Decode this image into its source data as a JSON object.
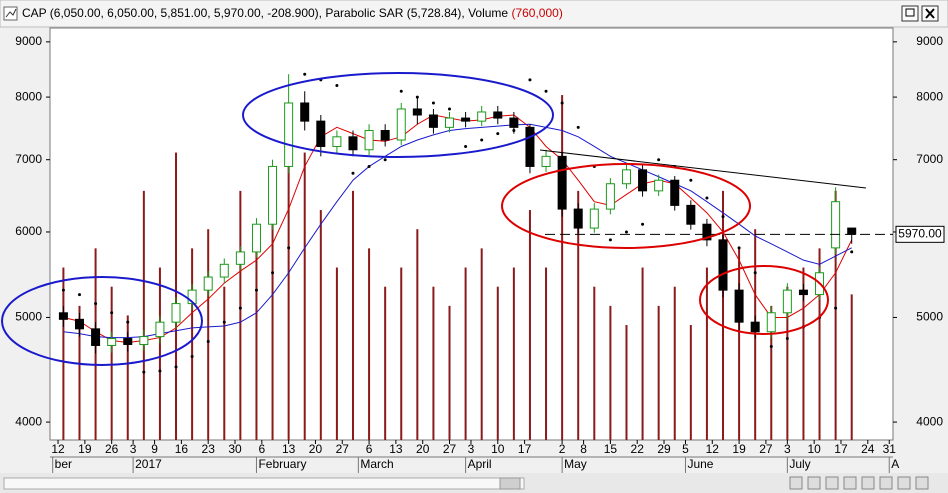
{
  "chart_data": {
    "type": "candlestick",
    "title": "CAP (6,050.00, 6,050.00, 5,851.00, 5,970.00, -208.900), Parabolic SAR (5,728.84), Volume ",
    "title_volume": "(760,000)",
    "log_scale": true,
    "ylim": [
      3850,
      9270
    ],
    "yticks": [
      4000,
      5000,
      6000,
      7000,
      8000,
      9000
    ],
    "xlim": [
      -1.5,
      155.7
    ],
    "xticks": [
      {
        "value": 0,
        "label": "12"
      },
      {
        "value": 5,
        "label": "19"
      },
      {
        "value": 10,
        "label": "26"
      },
      {
        "value": 14,
        "label": "3"
      },
      {
        "value": 18,
        "label": "9"
      },
      {
        "value": 23,
        "label": "16"
      },
      {
        "value": 28,
        "label": "23"
      },
      {
        "value": 33,
        "label": "30"
      },
      {
        "value": 38,
        "label": "6"
      },
      {
        "value": 43,
        "label": "13"
      },
      {
        "value": 48,
        "label": "20"
      },
      {
        "value": 53,
        "label": "27"
      },
      {
        "value": 58,
        "label": "6"
      },
      {
        "value": 63,
        "label": "13"
      },
      {
        "value": 68,
        "label": "20"
      },
      {
        "value": 73,
        "label": "27"
      },
      {
        "value": 77,
        "label": "3"
      },
      {
        "value": 82,
        "label": "10"
      },
      {
        "value": 87,
        "label": "17"
      },
      {
        "value": 94,
        "label": "2"
      },
      {
        "value": 98,
        "label": "8"
      },
      {
        "value": 103,
        "label": "15"
      },
      {
        "value": 108,
        "label": "22"
      },
      {
        "value": 113,
        "label": "29"
      },
      {
        "value": 117,
        "label": "5"
      },
      {
        "value": 122,
        "label": "12"
      },
      {
        "value": 127,
        "label": "19"
      },
      {
        "value": 132,
        "label": "27"
      },
      {
        "value": 136,
        "label": "3"
      },
      {
        "value": 141,
        "label": "10"
      },
      {
        "value": 146,
        "label": "17"
      },
      {
        "value": 151,
        "label": "24"
      },
      {
        "value": 155,
        "label": "31"
      }
    ],
    "month_ticks": [
      {
        "value": -1,
        "label": "ber"
      },
      {
        "value": 14,
        "label": "2017"
      },
      {
        "value": 37,
        "label": "February"
      },
      {
        "value": 56,
        "label": "March"
      },
      {
        "value": 76,
        "label": "April"
      },
      {
        "value": 94,
        "label": "May"
      },
      {
        "value": 117,
        "label": "June"
      },
      {
        "value": 136,
        "label": "July"
      },
      {
        "value": 155,
        "label": "A"
      }
    ],
    "x": [
      1,
      4,
      7,
      10,
      13,
      16,
      19,
      22,
      25,
      28,
      31,
      34,
      37,
      40,
      43,
      46,
      49,
      52,
      55,
      58,
      61,
      64,
      67,
      70,
      73,
      76,
      79,
      82,
      85,
      88,
      91,
      94,
      97,
      100,
      103,
      106,
      109,
      112,
      115,
      118,
      121,
      124,
      127,
      130,
      133,
      136,
      139,
      142,
      145,
      148
    ],
    "open": [
      5050,
      4980,
      4880,
      4710,
      4780,
      4720,
      4800,
      4950,
      5150,
      5300,
      5450,
      5600,
      5750,
      6100,
      6900,
      7900,
      7600,
      7200,
      7350,
      7150,
      7450,
      7300,
      7800,
      7700,
      7500,
      7650,
      7600,
      7750,
      7650,
      7500,
      6900,
      7050,
      6300,
      6050,
      6300,
      6650,
      6850,
      6550,
      6700,
      6350,
      6100,
      5900,
      5300,
      4950,
      4850,
      5050,
      5300,
      5250,
      5800,
      6050
    ],
    "high": [
      5120,
      5050,
      4950,
      4850,
      4850,
      4870,
      5020,
      5220,
      5370,
      5520,
      5670,
      5820,
      6180,
      7000,
      8400,
      8100,
      7700,
      7450,
      7450,
      7550,
      7550,
      7900,
      8000,
      7800,
      7750,
      7750,
      7850,
      7850,
      7750,
      7550,
      7150,
      7100,
      6380,
      6380,
      6730,
      6950,
      6920,
      6780,
      6760,
      6420,
      6170,
      5960,
      5380,
      5020,
      5120,
      5380,
      5370,
      5570,
      6600,
      6050
    ],
    "low": [
      4900,
      4800,
      4630,
      4640,
      4650,
      4660,
      4730,
      4880,
      5080,
      5230,
      5380,
      5530,
      5680,
      6030,
      6800,
      7450,
      7050,
      7100,
      7050,
      7070,
      7200,
      7220,
      7550,
      7400,
      7420,
      7500,
      7520,
      7550,
      7400,
      6800,
      6820,
      6200,
      5980,
      5990,
      6230,
      6580,
      6470,
      6480,
      6280,
      6030,
      5820,
      5220,
      4870,
      4780,
      4790,
      4990,
      5180,
      5190,
      5720,
      5851
    ],
    "close": [
      4980,
      4880,
      4710,
      4780,
      4720,
      4800,
      4950,
      5150,
      5300,
      5450,
      5600,
      5750,
      6100,
      6900,
      7900,
      7600,
      7200,
      7350,
      7150,
      7450,
      7300,
      7800,
      7700,
      7500,
      7650,
      7600,
      7750,
      7650,
      7500,
      6900,
      7050,
      6300,
      6050,
      6300,
      6650,
      6850,
      6550,
      6700,
      6350,
      6100,
      5900,
      5300,
      4950,
      4850,
      5050,
      5300,
      5250,
      5500,
      6400,
      5970
    ],
    "volume": [
      900000,
      700000,
      1000000,
      800000,
      650000,
      1300000,
      900000,
      1500000,
      1000000,
      1100000,
      800000,
      1300000,
      1100000,
      1200000,
      1700000,
      1500000,
      1200000,
      900000,
      1300000,
      1000000,
      800000,
      900000,
      1100000,
      800000,
      700000,
      900000,
      1000000,
      800000,
      900000,
      1200000,
      900000,
      1800000,
      1300000,
      800000,
      700000,
      600000,
      900000,
      700000,
      800000,
      600000,
      900000,
      1300000,
      1000000,
      1100000,
      700000,
      800000,
      900000,
      1000000,
      1300000,
      760000
    ],
    "volume_lim": [
      0,
      2150000
    ],
    "up_color": "#1a9a1a",
    "down_color": "#000000",
    "volume_color": "#8b1a1a",
    "overlays": [
      {
        "color": "#e00000",
        "values": [
          5000,
          4960,
          4850,
          4760,
          4740,
          4760,
          4790,
          4890,
          5050,
          5200,
          5380,
          5520,
          5650,
          5850,
          6300,
          6900,
          7350,
          7500,
          7400,
          7300,
          7280,
          7350,
          7550,
          7700,
          7650,
          7600,
          7620,
          7680,
          7700,
          7500,
          7200,
          7000,
          6700,
          6400,
          6350,
          6500,
          6650,
          6700,
          6650,
          6450,
          6250,
          6000,
          5650,
          5250,
          5000,
          5000,
          5100,
          5250,
          5500,
          5900
        ]
      },
      {
        "color": "#1a1acc",
        "values": [
          4850,
          4830,
          4800,
          4790,
          4790,
          4800,
          4830,
          4860,
          4890,
          4900,
          4910,
          4950,
          5050,
          5250,
          5500,
          5800,
          6100,
          6400,
          6700,
          6900,
          7050,
          7200,
          7300,
          7380,
          7450,
          7480,
          7500,
          7520,
          7540,
          7550,
          7500,
          7450,
          7350,
          7200,
          7050,
          6950,
          6850,
          6750,
          6650,
          6550,
          6400,
          6250,
          6100,
          5950,
          5850,
          5750,
          5650,
          5600,
          5700,
          5800
        ]
      }
    ],
    "sar": [
      5300,
      5250,
      5150,
      5050,
      4950,
      4450,
      4460,
      4500,
      4600,
      4750,
      4950,
      5100,
      5300,
      5500,
      5800,
      8400,
      8300,
      8200,
      6800,
      6900,
      7000,
      8100,
      8000,
      7900,
      7800,
      7200,
      7300,
      7400,
      7450,
      8300,
      8100,
      7900,
      7500,
      6900,
      5900,
      6000,
      6100,
      7000,
      6900,
      6700,
      6450,
      6200,
      5800,
      5500,
      4700,
      4780,
      4900,
      5000,
      5100,
      5750
    ],
    "last_price": {
      "value": 5970,
      "label": "5970.00"
    }
  }
}
